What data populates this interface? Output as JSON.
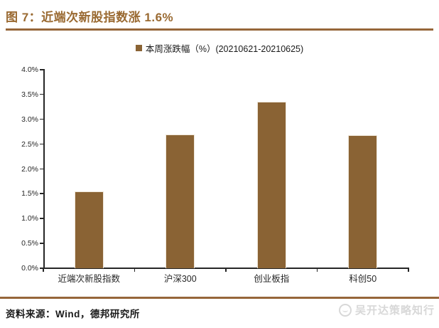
{
  "header": {
    "title": "图 7：近端次新股指数涨 1.6%"
  },
  "chart_data": {
    "type": "bar",
    "title": "图 7：近端次新股指数涨 1.6%",
    "legend": "本周涨跌幅（%）(20210621-20210625)",
    "legend_position": "top-center",
    "categories": [
      "近端次新股指数",
      "沪深300",
      "创业板指",
      "科创50"
    ],
    "values": [
      1.55,
      2.7,
      3.35,
      2.68
    ],
    "xlabel": "",
    "ylabel": "",
    "ylim": [
      0,
      4
    ],
    "ytick_step": 0.5,
    "yticks": [
      "0.0%",
      "0.5%",
      "1.0%",
      "1.5%",
      "2.0%",
      "2.5%",
      "3.0%",
      "3.5%",
      "4.0%"
    ],
    "grid": false,
    "bar_color": "#8a6334"
  },
  "footer": {
    "source": "资料来源：Wind，德邦研究所",
    "watermark": "吴开达策略知行"
  },
  "colors": {
    "accent": "#9a6a32",
    "rule": "#96663a",
    "bar": "#8a6334",
    "axis": "#262626",
    "watermark": "#d8d8d8"
  }
}
